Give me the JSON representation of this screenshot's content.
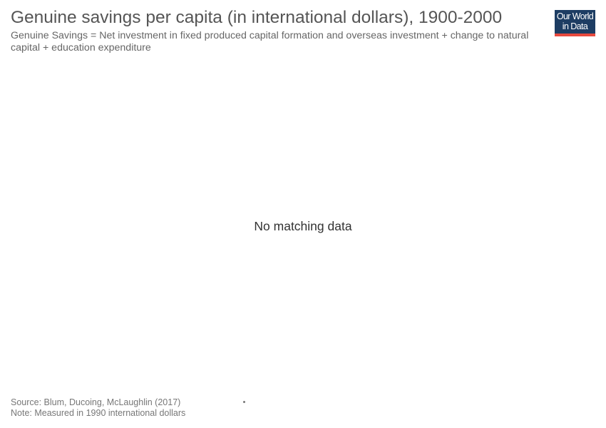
{
  "header": {
    "title": "Genuine savings per capita (in international dollars), 1900-2000",
    "subtitle": "Genuine Savings = Net investment in fixed produced capital formation and overseas investment + change to natural capital + education expenditure"
  },
  "logo": {
    "line1": "Our World",
    "line2": "in Data",
    "colors": {
      "background": "#1d3d63",
      "accent": "#e6493e"
    }
  },
  "chart_data": {
    "type": "line",
    "title": "Genuine savings per capita (in international dollars), 1900-2000",
    "subtitle": "Genuine Savings = Net investment in fixed produced capital formation and overseas investment + change to natural capital + education expenditure",
    "message": "No matching data",
    "series": []
  },
  "footer": {
    "source": "Source: Blum, Ducoing, McLaughlin (2017)",
    "note": "Note: Measured in 1990 international dollars"
  }
}
